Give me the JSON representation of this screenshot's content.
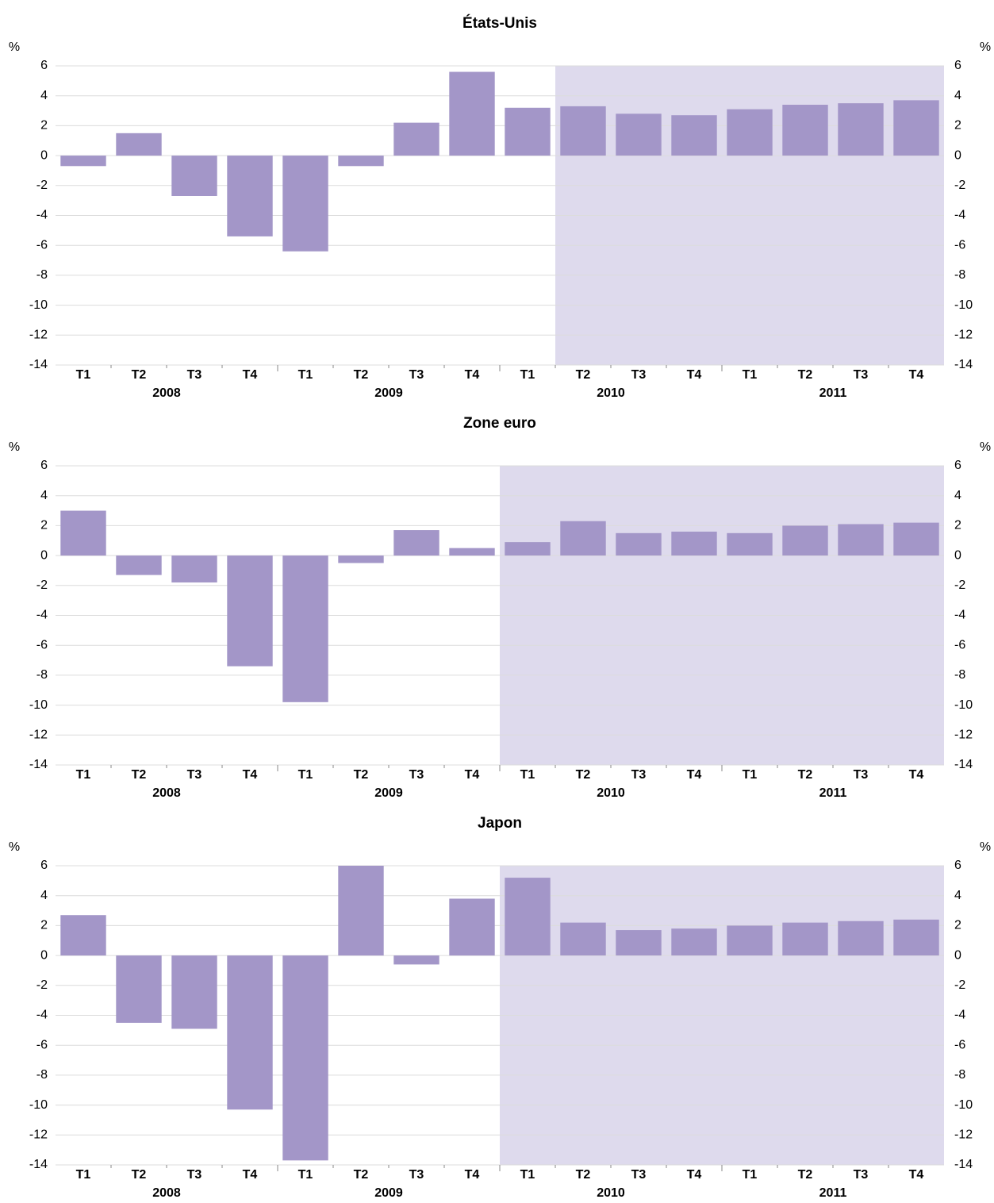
{
  "chart_data": [
    {
      "type": "bar",
      "title": "États-Unis",
      "unit": "%",
      "categories": [
        "T1",
        "T2",
        "T3",
        "T4",
        "T1",
        "T2",
        "T3",
        "T4",
        "T1",
        "T2",
        "T3",
        "T4",
        "T1",
        "T2",
        "T3",
        "T4"
      ],
      "year_labels": [
        "2008",
        "2009",
        "2010",
        "2011"
      ],
      "values": [
        -0.7,
        1.5,
        -2.7,
        -5.4,
        -6.4,
        -0.7,
        2.2,
        5.6,
        3.2,
        3.3,
        2.8,
        2.7,
        3.1,
        3.4,
        3.5,
        3.7
      ],
      "color": "#a396c8",
      "ylim": [
        -14,
        6
      ],
      "yticks": [
        -14,
        -12,
        -10,
        -8,
        -6,
        -4,
        -2,
        0,
        2,
        4,
        6
      ],
      "grid": true
    },
    {
      "type": "bar",
      "title": "Zone euro",
      "unit": "%",
      "categories": [
        "T1",
        "T2",
        "T3",
        "T4",
        "T1",
        "T2",
        "T3",
        "T4",
        "T1",
        "T2",
        "T3",
        "T4",
        "T1",
        "T2",
        "T3",
        "T4"
      ],
      "year_labels": [
        "2008",
        "2009",
        "2010",
        "2011"
      ],
      "values": [
        3.0,
        -1.3,
        -1.8,
        -7.4,
        -9.8,
        -0.5,
        1.7,
        0.5,
        0.9,
        2.3,
        1.5,
        1.6,
        1.5,
        2.0,
        2.1,
        2.2
      ],
      "color": "#a396c8",
      "ylim": [
        -14,
        6
      ],
      "yticks": [
        -14,
        -12,
        -10,
        -8,
        -6,
        -4,
        -2,
        0,
        2,
        4,
        6
      ],
      "grid": true
    },
    {
      "type": "bar",
      "title": "Japon",
      "unit": "%",
      "categories": [
        "T1",
        "T2",
        "T3",
        "T4",
        "T1",
        "T2",
        "T3",
        "T4",
        "T1",
        "T2",
        "T3",
        "T4",
        "T1",
        "T2",
        "T3",
        "T4"
      ],
      "year_labels": [
        "2008",
        "2009",
        "2010",
        "2011"
      ],
      "values": [
        2.7,
        -4.5,
        -4.9,
        -10.3,
        -13.7,
        6.0,
        -0.6,
        3.8,
        5.2,
        2.2,
        1.7,
        1.8,
        2.0,
        2.2,
        2.3,
        2.4
      ],
      "color": "#a396c8",
      "ylim": [
        -14,
        6
      ],
      "yticks": [
        -14,
        -12,
        -10,
        -8,
        -6,
        -4,
        -2,
        0,
        2,
        4,
        6
      ],
      "grid": true
    }
  ]
}
